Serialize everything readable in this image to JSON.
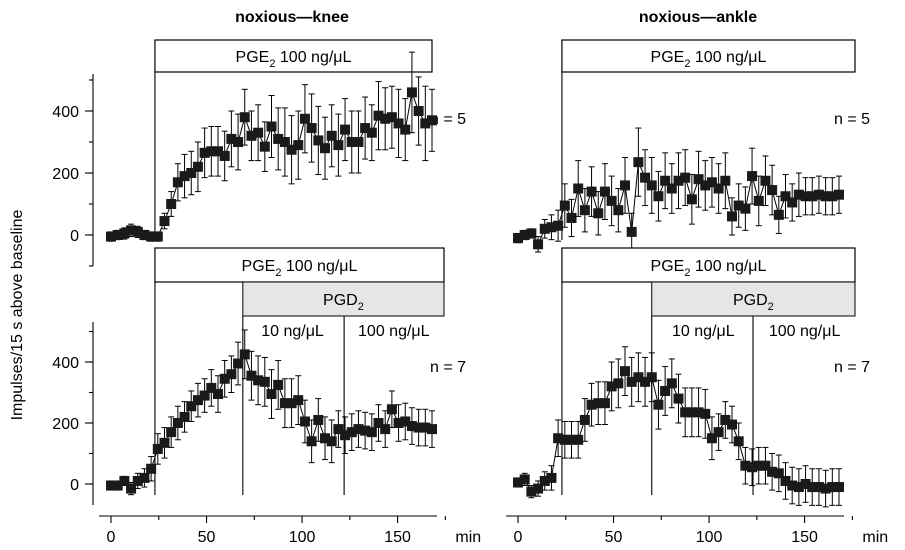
{
  "ylabel": "Impulses/15 s above baseline",
  "x_unit": "min",
  "chart_data": [
    {
      "type": "scatter",
      "title": "noxious—knee",
      "n_label": "n = 5",
      "xlim": [
        -5,
        180
      ],
      "ylim": [
        -100,
        520
      ],
      "yticks": [
        0,
        200,
        400
      ],
      "show_x_axis": false,
      "treatments": [
        {
          "label_main": "PGE",
          "label_sub": "2",
          "label_rest": " 100 ng/μL",
          "start": 23,
          "end": 170,
          "shaded": false
        }
      ],
      "vlines": [
        23
      ],
      "segment_labels": [],
      "series": [
        {
          "x": [
            0,
            3.5,
            7,
            10.5,
            14,
            17.5,
            21,
            24.5,
            28,
            31.5,
            35,
            38.5,
            42,
            45.5,
            49,
            52.5,
            56,
            59.5,
            63,
            66.5,
            70,
            73.5,
            77,
            80.5,
            84,
            87.5,
            91,
            94.5,
            98,
            101.5,
            105,
            108.5,
            112,
            115.5,
            119,
            122.5,
            126,
            129.5,
            133,
            136.5,
            140,
            143.5,
            147,
            150.5,
            154,
            157.5,
            161,
            164.5,
            168
          ],
          "y": [
            -5,
            0,
            5,
            15,
            10,
            0,
            -5,
            -5,
            45,
            100,
            170,
            190,
            200,
            220,
            265,
            270,
            270,
            255,
            310,
            300,
            380,
            320,
            330,
            285,
            350,
            310,
            300,
            275,
            290,
            375,
            345,
            305,
            280,
            320,
            290,
            340,
            300,
            300,
            345,
            330,
            385,
            375,
            380,
            360,
            340,
            460,
            400,
            360,
            370
          ],
          "err": [
            15,
            15,
            18,
            20,
            18,
            15,
            15,
            15,
            25,
            40,
            60,
            70,
            70,
            80,
            80,
            80,
            80,
            80,
            90,
            90,
            90,
            80,
            90,
            80,
            100,
            100,
            110,
            110,
            110,
            110,
            110,
            110,
            100,
            100,
            100,
            100,
            100,
            100,
            100,
            90,
            110,
            100,
            100,
            110,
            100,
            130,
            110,
            120,
            100
          ]
        }
      ]
    },
    {
      "type": "scatter",
      "title": "noxious—ankle",
      "n_label": "n = 5",
      "xlim": [
        -5,
        180
      ],
      "ylim": [
        -100,
        520
      ],
      "yticks": [],
      "show_x_axis": false,
      "treatments": [
        {
          "label_main": "PGE",
          "label_sub": "2",
          "label_rest": " 100 ng/μL",
          "start": 23,
          "end": 175,
          "shaded": false
        }
      ],
      "vlines": [
        23
      ],
      "segment_labels": [],
      "series": [
        {
          "x": [
            0,
            3.5,
            7,
            10.5,
            14,
            17.5,
            21,
            24.5,
            28,
            31.5,
            35,
            38.5,
            42,
            45.5,
            49,
            52.5,
            56,
            59.5,
            63,
            66.5,
            70,
            73.5,
            77,
            80.5,
            84,
            87.5,
            91,
            94.5,
            98,
            101.5,
            105,
            108.5,
            112,
            115.5,
            119,
            122.5,
            126,
            129.5,
            133,
            136.5,
            140,
            143.5,
            147,
            150.5,
            154,
            157.5,
            161,
            164.5,
            168
          ],
          "y": [
            -10,
            0,
            5,
            -30,
            20,
            25,
            30,
            95,
            55,
            150,
            80,
            140,
            70,
            140,
            110,
            80,
            160,
            10,
            235,
            185,
            160,
            125,
            175,
            150,
            175,
            185,
            115,
            180,
            160,
            170,
            150,
            175,
            60,
            95,
            85,
            190,
            110,
            175,
            145,
            65,
            125,
            105,
            130,
            125,
            125,
            130,
            125,
            125,
            130
          ],
          "err": [
            15,
            15,
            15,
            25,
            30,
            40,
            50,
            70,
            60,
            90,
            70,
            80,
            70,
            90,
            80,
            70,
            90,
            60,
            110,
            90,
            90,
            80,
            90,
            80,
            90,
            90,
            80,
            90,
            80,
            80,
            80,
            90,
            60,
            70,
            70,
            90,
            80,
            80,
            80,
            60,
            70,
            60,
            70,
            60,
            60,
            60,
            60,
            60,
            60
          ]
        }
      ]
    },
    {
      "type": "scatter",
      "title": "",
      "n_label": "n = 7",
      "xlim": [
        -5,
        180
      ],
      "ylim": [
        -80,
        520
      ],
      "yticks": [
        0,
        200,
        400
      ],
      "show_x_axis": true,
      "xticks": [
        0,
        50,
        100,
        150
      ],
      "treatments": [
        {
          "label_main": "PGE",
          "label_sub": "2",
          "label_rest": " 100 ng/μL",
          "start": 23,
          "end": 175,
          "shaded": false
        },
        {
          "label_main": "PGD",
          "label_sub": "2",
          "label_rest": "",
          "start": 69,
          "end": 175,
          "shaded": true
        }
      ],
      "vlines": [
        23,
        69,
        122
      ],
      "segment_labels": [
        {
          "text": "10 ng/μL",
          "at": 95
        },
        {
          "text": "100 ng/μL",
          "at": 148
        }
      ],
      "series": [
        {
          "x": [
            0,
            3.5,
            7,
            10.5,
            14,
            17.5,
            21,
            24.5,
            28,
            31.5,
            35,
            38.5,
            42,
            45.5,
            49,
            52.5,
            56,
            59.5,
            63,
            66.5,
            70,
            73.5,
            77,
            80.5,
            84,
            87.5,
            91,
            94.5,
            98,
            101.5,
            105,
            108.5,
            112,
            115.5,
            119,
            122.5,
            126,
            129.5,
            133,
            136.5,
            140,
            143.5,
            147,
            150.5,
            154,
            157.5,
            161,
            164.5,
            168
          ],
          "y": [
            -5,
            -5,
            10,
            -15,
            10,
            20,
            50,
            115,
            135,
            170,
            200,
            220,
            255,
            275,
            290,
            315,
            295,
            345,
            360,
            395,
            425,
            355,
            340,
            335,
            295,
            325,
            265,
            265,
            275,
            205,
            140,
            210,
            150,
            140,
            180,
            160,
            170,
            180,
            175,
            170,
            200,
            180,
            245,
            200,
            205,
            190,
            185,
            185,
            180
          ],
          "err": [
            15,
            15,
            15,
            20,
            25,
            30,
            40,
            50,
            50,
            50,
            55,
            50,
            50,
            55,
            55,
            60,
            60,
            60,
            60,
            70,
            80,
            80,
            80,
            80,
            80,
            80,
            80,
            80,
            80,
            70,
            70,
            70,
            70,
            70,
            60,
            60,
            60,
            60,
            60,
            60,
            60,
            60,
            60,
            60,
            60,
            60,
            60,
            60,
            60
          ]
        }
      ]
    },
    {
      "type": "scatter",
      "title": "",
      "n_label": "n = 7",
      "xlim": [
        -5,
        180
      ],
      "ylim": [
        -80,
        520
      ],
      "yticks": [],
      "show_x_axis": true,
      "xticks": [
        0,
        50,
        100,
        150
      ],
      "treatments": [
        {
          "label_main": "PGE",
          "label_sub": "2",
          "label_rest": " 100 ng/μL",
          "start": 23,
          "end": 175,
          "shaded": false
        },
        {
          "label_main": "PGD",
          "label_sub": "2",
          "label_rest": "",
          "start": 70,
          "end": 175,
          "shaded": true
        }
      ],
      "vlines": [
        23,
        70,
        123
      ],
      "segment_labels": [
        {
          "text": "10 ng/μL",
          "at": 97
        },
        {
          "text": "100 ng/μL",
          "at": 150
        }
      ],
      "series": [
        {
          "x": [
            0,
            3.5,
            7,
            10.5,
            14,
            17.5,
            21,
            24.5,
            28,
            31.5,
            35,
            38.5,
            42,
            45.5,
            49,
            52.5,
            56,
            59.5,
            63,
            66.5,
            70,
            73.5,
            77,
            80.5,
            84,
            87.5,
            91,
            94.5,
            98,
            101.5,
            105,
            108.5,
            112,
            115.5,
            119,
            122.5,
            126,
            129.5,
            133,
            136.5,
            140,
            143.5,
            147,
            150.5,
            154,
            157.5,
            161,
            164.5,
            168
          ],
          "y": [
            5,
            15,
            -25,
            -15,
            10,
            20,
            150,
            145,
            145,
            145,
            210,
            260,
            265,
            265,
            320,
            330,
            370,
            335,
            350,
            335,
            350,
            260,
            305,
            330,
            280,
            235,
            235,
            235,
            230,
            150,
            170,
            210,
            195,
            140,
            60,
            55,
            60,
            60,
            40,
            35,
            10,
            -5,
            -10,
            0,
            -10,
            -10,
            -15,
            -10,
            -10
          ],
          "err": [
            15,
            20,
            20,
            25,
            30,
            40,
            60,
            60,
            60,
            60,
            70,
            70,
            70,
            70,
            80,
            80,
            80,
            80,
            80,
            80,
            80,
            80,
            80,
            80,
            80,
            80,
            80,
            80,
            80,
            70,
            60,
            60,
            60,
            60,
            60,
            60,
            60,
            60,
            60,
            60,
            60,
            60,
            60,
            60,
            60,
            60,
            60,
            60,
            60
          ]
        }
      ]
    }
  ]
}
